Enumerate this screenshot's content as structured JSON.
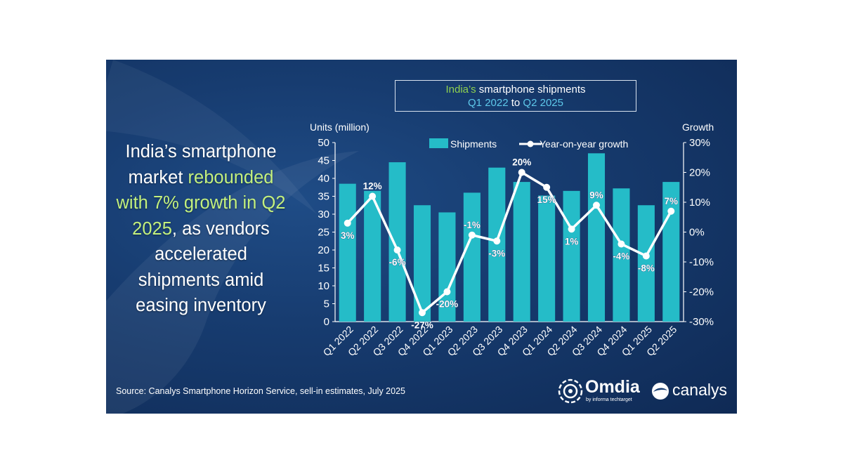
{
  "headline": {
    "part1": "India’s smartphone market ",
    "highlight": "rebounded with 7% growth in Q2 2025",
    "part2": ", as vendors accelerated shipments amid easing inventory"
  },
  "title": {
    "country": "India’s",
    "rest": " smartphone shipments",
    "from": "Q1 2022",
    "to_word": " to ",
    "to": "Q2 2025"
  },
  "source": "Source: Canalys Smartphone Horizon Service, sell-in estimates, July 2025",
  "logos": {
    "omdia": "Omdia",
    "omdia_tagline": "by informa techtarget",
    "canalys": "canalys"
  },
  "colors": {
    "bar": "#25bcc8",
    "line": "#ffffff",
    "headline_highlight": "#c3f07e",
    "title_accent": "#8fd14f"
  },
  "chart_data": {
    "type": "bar",
    "categories": [
      "Q1 2022",
      "Q2 2022",
      "Q3 2022",
      "Q4 2022",
      "Q1 2023",
      "Q2 2023",
      "Q3 2023",
      "Q4 2023",
      "Q1 2024",
      "Q2 2024",
      "Q3 2024",
      "Q4 2024",
      "Q1 2025",
      "Q2 2025"
    ],
    "series": [
      {
        "name": "Shipments",
        "type": "bar",
        "axis": "left",
        "values": [
          38.5,
          36.5,
          44.5,
          32.5,
          30.5,
          36,
          43,
          39,
          35.2,
          36.5,
          47,
          37.2,
          32.5,
          39
        ]
      },
      {
        "name": "Year-on-year growth",
        "type": "line",
        "axis": "right",
        "values": [
          3,
          12,
          -6,
          -27,
          -20,
          -1,
          -3,
          20,
          15,
          1,
          9,
          -4,
          -8,
          7
        ],
        "labels": [
          "3%",
          "12%",
          "-6%",
          "-27%",
          "-20%",
          "-1%",
          "-3%",
          "20%",
          "15%",
          "1%",
          "9%",
          "-4%",
          "-8%",
          "7%"
        ]
      }
    ],
    "ylabel": "Units (million)",
    "y2label": "Growth",
    "ylim": [
      0,
      50
    ],
    "yticks": [
      "0",
      "5",
      "10",
      "15",
      "20",
      "25",
      "30",
      "35",
      "40",
      "45",
      "50"
    ],
    "y2lim": [
      -30,
      30
    ],
    "y2ticks": [
      "-30%",
      "-20%",
      "-10%",
      "0%",
      "10%",
      "20%",
      "30%"
    ],
    "legend_position": "top",
    "grid": false
  }
}
